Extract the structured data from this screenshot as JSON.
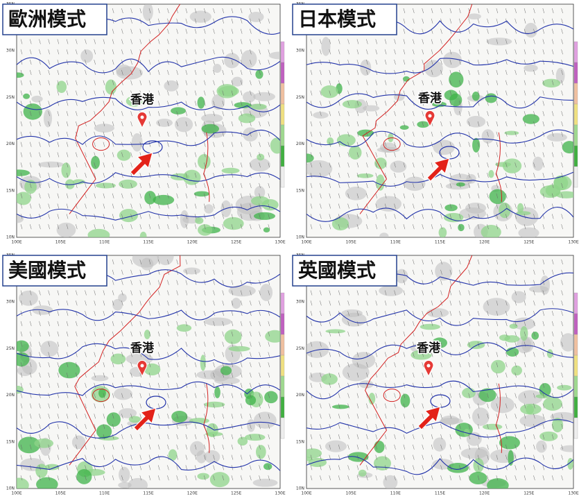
{
  "panels": [
    {
      "title": "歐洲模式",
      "place_label": "香港"
    },
    {
      "title": "日本模式",
      "place_label": "香港"
    },
    {
      "title": "美國模式",
      "place_label": "香港"
    },
    {
      "title": "英國模式",
      "place_label": "香港"
    }
  ],
  "axes": {
    "lon_ticks": [
      "100E",
      "105E",
      "110E",
      "115E",
      "120E",
      "125E",
      "130E"
    ],
    "lat_ticks": [
      "10N",
      "15N",
      "20N",
      "25N",
      "30N",
      "35N"
    ]
  }
}
